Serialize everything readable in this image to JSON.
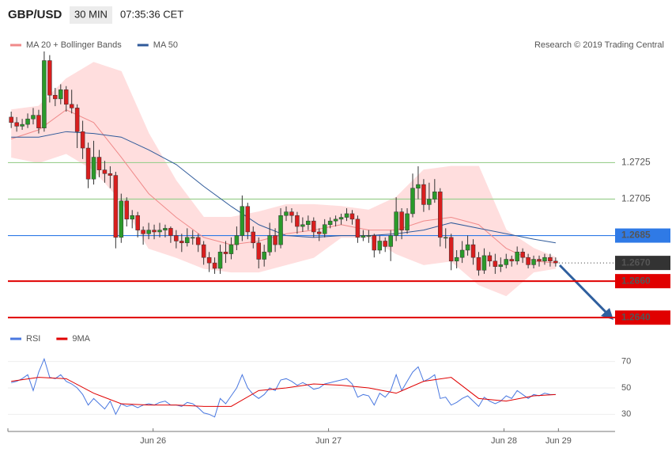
{
  "header": {
    "symbol": "GBP/USD",
    "interval": "30 MIN",
    "time": "07:35:36 CET"
  },
  "credit": "Research © 2019 Trading Central",
  "chart_data": [
    {
      "type": "candlestick",
      "xlim": [
        -0.6,
        109.8
      ],
      "ylim": [
        1.2634,
        1.2786
      ],
      "up_color": "#2a9a2a",
      "down_color": "#d91e1e",
      "candles": [
        [
          1.275,
          1.2753,
          1.2744,
          1.2747
        ],
        [
          1.2747,
          1.275,
          1.2742,
          1.2745
        ],
        [
          1.2745,
          1.2749,
          1.2743,
          1.2746
        ],
        [
          1.2746,
          1.2752,
          1.2744,
          1.2749
        ],
        [
          1.2749,
          1.2755,
          1.2746,
          1.2751
        ],
        [
          1.2751,
          1.2754,
          1.2741,
          1.2744
        ],
        [
          1.2744,
          1.2786,
          1.2742,
          1.2781
        ],
        [
          1.2781,
          1.2784,
          1.2758,
          1.2762
        ],
        [
          1.2762,
          1.2766,
          1.2756,
          1.276
        ],
        [
          1.276,
          1.2768,
          1.2757,
          1.2765
        ],
        [
          1.2765,
          1.2767,
          1.2753,
          1.2757
        ],
        [
          1.2757,
          1.2765,
          1.2752,
          1.2755
        ],
        [
          1.2755,
          1.2757,
          1.2733,
          1.2742
        ],
        [
          1.2742,
          1.2748,
          1.2727,
          1.2733
        ],
        [
          1.2733,
          1.2736,
          1.2711,
          1.2716
        ],
        [
          1.2716,
          1.2737,
          1.2713,
          1.2728
        ],
        [
          1.2728,
          1.2732,
          1.2717,
          1.2721
        ],
        [
          1.2721,
          1.2726,
          1.2714,
          1.2719
        ],
        [
          1.2719,
          1.2723,
          1.2711,
          1.2718
        ],
        [
          1.2718,
          1.272,
          1.2678,
          1.2684
        ],
        [
          1.2684,
          1.2708,
          1.2681,
          1.2704
        ],
        [
          1.2704,
          1.2706,
          1.269,
          1.2694
        ],
        [
          1.2694,
          1.2699,
          1.2689,
          1.2696
        ],
        [
          1.2696,
          1.2698,
          1.2684,
          1.2688
        ],
        [
          1.2688,
          1.269,
          1.268,
          1.2686
        ],
        [
          1.2686,
          1.2692,
          1.2683,
          1.2688
        ],
        [
          1.2688,
          1.2691,
          1.2683,
          1.2687
        ],
        [
          1.2687,
          1.2692,
          1.2684,
          1.2688
        ],
        [
          1.2688,
          1.2691,
          1.2684,
          1.2689
        ],
        [
          1.2689,
          1.269,
          1.2681,
          1.2685
        ],
        [
          1.2685,
          1.2688,
          1.2678,
          1.2682
        ],
        [
          1.2682,
          1.2686,
          1.2676,
          1.2681
        ],
        [
          1.2681,
          1.2689,
          1.2679,
          1.2684
        ],
        [
          1.2684,
          1.2688,
          1.268,
          1.2684
        ],
        [
          1.2684,
          1.2686,
          1.2676,
          1.268
        ],
        [
          1.268,
          1.2682,
          1.2669,
          1.2673
        ],
        [
          1.2673,
          1.2676,
          1.2665,
          1.267
        ],
        [
          1.267,
          1.2673,
          1.2664,
          1.2667
        ],
        [
          1.2667,
          1.268,
          1.2664,
          1.2676
        ],
        [
          1.2676,
          1.2682,
          1.267,
          1.2675
        ],
        [
          1.2675,
          1.2684,
          1.2672,
          1.268
        ],
        [
          1.268,
          1.269,
          1.2677,
          1.2685
        ],
        [
          1.2685,
          1.2707,
          1.2682,
          1.2701
        ],
        [
          1.2701,
          1.2703,
          1.2683,
          1.2687
        ],
        [
          1.2687,
          1.269,
          1.2678,
          1.2681
        ],
        [
          1.2681,
          1.2684,
          1.2667,
          1.2672
        ],
        [
          1.2672,
          1.268,
          1.2668,
          1.2676
        ],
        [
          1.2676,
          1.2692,
          1.2674,
          1.2685
        ],
        [
          1.2685,
          1.2689,
          1.2676,
          1.268
        ],
        [
          1.268,
          1.27,
          1.2678,
          1.2696
        ],
        [
          1.2696,
          1.2701,
          1.2693,
          1.2698
        ],
        [
          1.2698,
          1.27,
          1.2692,
          1.2696
        ],
        [
          1.2696,
          1.2698,
          1.2686,
          1.269
        ],
        [
          1.269,
          1.2695,
          1.2687,
          1.2691
        ],
        [
          1.2691,
          1.2696,
          1.2688,
          1.2693
        ],
        [
          1.2693,
          1.2695,
          1.2684,
          1.2687
        ],
        [
          1.2687,
          1.2689,
          1.2682,
          1.2686
        ],
        [
          1.2686,
          1.2694,
          1.2684,
          1.2691
        ],
        [
          1.2691,
          1.2695,
          1.2689,
          1.2693
        ],
        [
          1.2693,
          1.2696,
          1.269,
          1.2694
        ],
        [
          1.2694,
          1.2697,
          1.2691,
          1.2695
        ],
        [
          1.2695,
          1.27,
          1.2693,
          1.2697
        ],
        [
          1.2697,
          1.2699,
          1.2691,
          1.2694
        ],
        [
          1.2694,
          1.2696,
          1.2681,
          1.2684
        ],
        [
          1.2684,
          1.2688,
          1.2682,
          1.2685
        ],
        [
          1.2685,
          1.2688,
          1.2681,
          1.2685
        ],
        [
          1.2685,
          1.2686,
          1.2673,
          1.2677
        ],
        [
          1.2677,
          1.2685,
          1.2675,
          1.2682
        ],
        [
          1.2682,
          1.2684,
          1.2676,
          1.2679
        ],
        [
          1.2679,
          1.2688,
          1.2671,
          1.2685
        ],
        [
          1.2685,
          1.2706,
          1.2682,
          1.2698
        ],
        [
          1.2698,
          1.27,
          1.2683,
          1.2688
        ],
        [
          1.2688,
          1.27,
          1.2686,
          1.2697
        ],
        [
          1.2697,
          1.2719,
          1.2695,
          1.2711
        ],
        [
          1.2711,
          1.2723,
          1.2705,
          1.2713
        ],
        [
          1.2713,
          1.2716,
          1.2698,
          1.2702
        ],
        [
          1.2702,
          1.2714,
          1.2699,
          1.2705
        ],
        [
          1.2705,
          1.2716,
          1.2703,
          1.2709
        ],
        [
          1.2709,
          1.2711,
          1.2679,
          1.2684
        ],
        [
          1.2684,
          1.2689,
          1.2678,
          1.2684
        ],
        [
          1.2684,
          1.2686,
          1.2666,
          1.2671
        ],
        [
          1.2671,
          1.2677,
          1.2667,
          1.2673
        ],
        [
          1.2673,
          1.2682,
          1.267,
          1.2677
        ],
        [
          1.2677,
          1.2685,
          1.2674,
          1.268
        ],
        [
          1.268,
          1.2683,
          1.2669,
          1.2673
        ],
        [
          1.2673,
          1.2676,
          1.2663,
          1.2666
        ],
        [
          1.2666,
          1.2678,
          1.2664,
          1.2674
        ],
        [
          1.2674,
          1.2676,
          1.2668,
          1.2671
        ],
        [
          1.2671,
          1.2675,
          1.2664,
          1.2668
        ],
        [
          1.2668,
          1.2673,
          1.2665,
          1.2669
        ],
        [
          1.2669,
          1.2675,
          1.2667,
          1.2672
        ],
        [
          1.2672,
          1.2674,
          1.2668,
          1.2671
        ],
        [
          1.2671,
          1.2679,
          1.2669,
          1.2676
        ],
        [
          1.2676,
          1.2678,
          1.267,
          1.2673
        ],
        [
          1.2673,
          1.2675,
          1.2667,
          1.2669
        ],
        [
          1.2669,
          1.2674,
          1.2667,
          1.2672
        ],
        [
          1.2672,
          1.2674,
          1.2668,
          1.2671
        ],
        [
          1.2671,
          1.2675,
          1.2669,
          1.2673
        ],
        [
          1.2673,
          1.2675,
          1.2668,
          1.2671
        ],
        [
          1.2671,
          1.2673,
          1.2668,
          1.267
        ]
      ],
      "series": [
        {
          "name": "MA 20 + Bollinger Bands",
          "color": "#f08a8a",
          "band_color": "#ffdede",
          "x": [
            0,
            5,
            10,
            15,
            20,
            25,
            30,
            35,
            40,
            45,
            50,
            55,
            60,
            65,
            70,
            75,
            80,
            85,
            90,
            95,
            99
          ],
          "values": [
            1.2738,
            1.2743,
            1.2754,
            1.2747,
            1.2728,
            1.2708,
            1.2695,
            1.2684,
            1.268,
            1.2682,
            1.2686,
            1.2688,
            1.2691,
            1.2688,
            1.2688,
            1.2693,
            1.2695,
            1.2691,
            1.2678,
            1.2671,
            1.267
          ],
          "upper": [
            1.2754,
            1.2756,
            1.2771,
            1.278,
            1.2775,
            1.2741,
            1.2715,
            1.2695,
            1.2695,
            1.2698,
            1.2702,
            1.2702,
            1.2701,
            1.2699,
            1.2706,
            1.2721,
            1.2723,
            1.2723,
            1.2688,
            1.2678,
            1.2673
          ],
          "lower": [
            1.2728,
            1.2725,
            1.273,
            1.2721,
            1.2704,
            1.2678,
            1.2673,
            1.2667,
            1.2665,
            1.2665,
            1.2669,
            1.2673,
            1.2684,
            1.2684,
            1.2675,
            1.2669,
            1.2671,
            1.2658,
            1.2652,
            1.2665,
            1.2667
          ]
        },
        {
          "name": "MA 50",
          "color": "#2f5a9a",
          "x": [
            0,
            5,
            10,
            15,
            20,
            25,
            30,
            35,
            40,
            45,
            50,
            55,
            60,
            65,
            70,
            75,
            80,
            85,
            90,
            95,
            99
          ],
          "values": [
            1.2739,
            1.2739,
            1.2742,
            1.2741,
            1.2739,
            1.2732,
            1.2724,
            1.2712,
            1.2701,
            1.2691,
            1.2685,
            1.2684,
            1.2685,
            1.2685,
            1.2686,
            1.2688,
            1.2692,
            1.2689,
            1.2686,
            1.2683,
            1.2681
          ]
        }
      ],
      "levels": [
        {
          "value": 1.2725,
          "label": "1.2725",
          "color": "#9ccf8f",
          "style": "plain"
        },
        {
          "value": 1.2705,
          "label": "1.2705",
          "color": "#9ccf8f",
          "style": "plain"
        },
        {
          "value": 1.2685,
          "label": "1.2685",
          "color": "#2f7ae6",
          "style": "box"
        },
        {
          "value": 1.267,
          "label": "1.2670",
          "color": "#333333",
          "style": "dotted"
        },
        {
          "value": 1.266,
          "label": "1.2660",
          "color": "#e00000",
          "style": "box"
        },
        {
          "value": 1.264,
          "label": "1.2640",
          "color": "#e00000",
          "style": "box"
        }
      ]
    },
    {
      "type": "line",
      "xlim": [
        -0.6,
        109.8
      ],
      "ylim": [
        20,
        80
      ],
      "yticks": [
        30,
        50,
        70
      ],
      "xticks": [
        {
          "value": 25.8,
          "label": "Jun 26"
        },
        {
          "value": 57.7,
          "label": "Jun 27"
        },
        {
          "value": 89.6,
          "label": "Jun 28"
        },
        {
          "value": 99.5,
          "label": "Jun 29"
        }
      ],
      "series": [
        {
          "name": "RSI",
          "color": "#4a78e0",
          "x": [
            0,
            1,
            2,
            3,
            4,
            5,
            6,
            7,
            8,
            9,
            10,
            11,
            12,
            13,
            14,
            15,
            16,
            17,
            18,
            19,
            20,
            21,
            22,
            23,
            24,
            25,
            26,
            27,
            28,
            29,
            30,
            31,
            32,
            33,
            34,
            35,
            36,
            37,
            38,
            39,
            40,
            41,
            42,
            43,
            44,
            45,
            46,
            47,
            48,
            49,
            50,
            51,
            52,
            53,
            54,
            55,
            56,
            57,
            58,
            59,
            60,
            61,
            62,
            63,
            64,
            65,
            66,
            67,
            68,
            69,
            70,
            71,
            72,
            73,
            74,
            75,
            76,
            77,
            78,
            79,
            80,
            81,
            82,
            83,
            84,
            85,
            86,
            87,
            88,
            89,
            90,
            91,
            92,
            93,
            94,
            95,
            96,
            97,
            98,
            99
          ],
          "values": [
            54,
            55,
            57,
            60,
            48,
            62,
            72,
            58,
            57,
            60,
            55,
            53,
            50,
            45,
            37,
            42,
            38,
            34,
            40,
            30,
            38,
            36,
            37,
            35,
            37,
            38,
            37,
            39,
            40,
            37,
            37,
            36,
            39,
            38,
            35,
            31,
            30,
            28,
            42,
            38,
            44,
            50,
            60,
            50,
            45,
            42,
            45,
            50,
            48,
            56,
            57,
            55,
            52,
            54,
            52,
            49,
            50,
            53,
            54,
            55,
            56,
            57,
            53,
            43,
            45,
            44,
            37,
            46,
            43,
            48,
            60,
            48,
            55,
            62,
            66,
            55,
            57,
            60,
            42,
            43,
            37,
            39,
            42,
            44,
            40,
            36,
            43,
            40,
            38,
            40,
            44,
            42,
            48,
            45,
            42,
            45,
            44,
            46,
            45,
            45
          ]
        },
        {
          "name": "9MA",
          "color": "#e00000",
          "x": [
            0,
            5,
            10,
            15,
            20,
            25,
            30,
            35,
            40,
            45,
            50,
            55,
            60,
            65,
            70,
            75,
            80,
            85,
            90,
            95,
            99
          ],
          "values": [
            55,
            58,
            57,
            46,
            38,
            37,
            37,
            36,
            36,
            48,
            50,
            53,
            52,
            50,
            46,
            55,
            58,
            42,
            40,
            44,
            45
          ]
        }
      ]
    }
  ]
}
